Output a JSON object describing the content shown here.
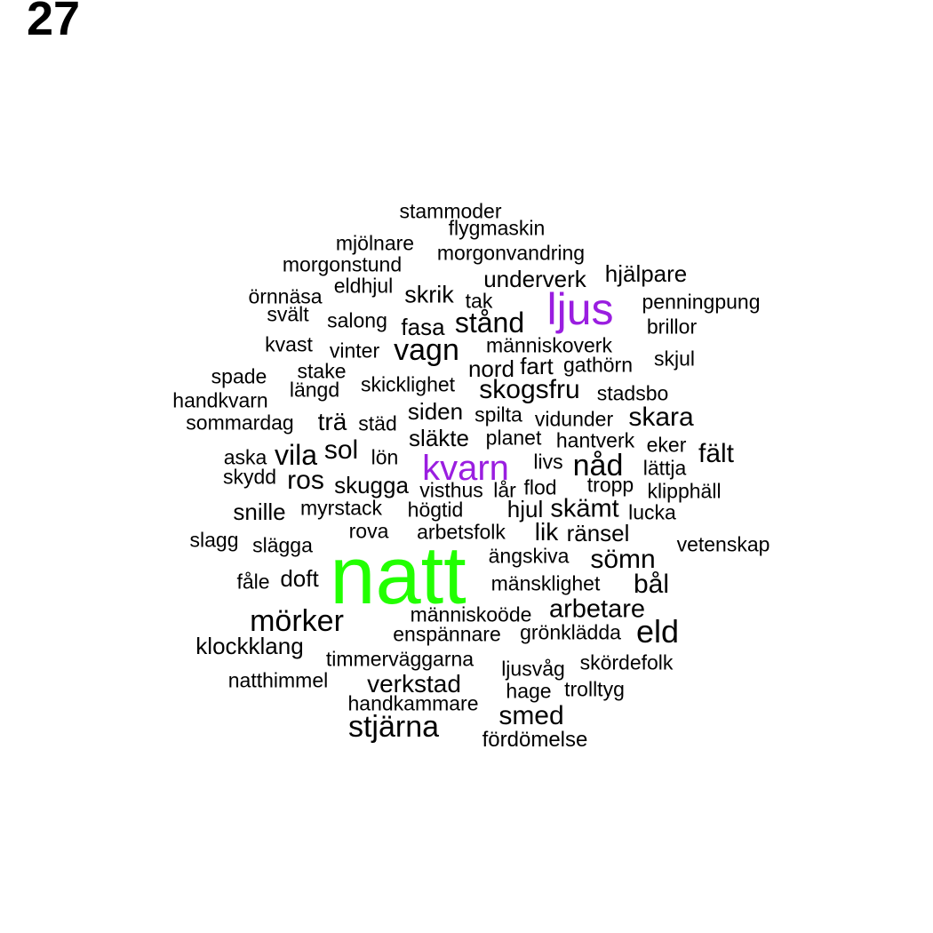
{
  "page_number": "27",
  "colors": {
    "default": "#000000",
    "purple": "#9a1ee0",
    "green": "#22ff00"
  },
  "words": [
    {
      "text": "natt",
      "color": "green"
    },
    {
      "text": "ljus",
      "color": "purple"
    },
    {
      "text": "kvarn",
      "color": "purple"
    },
    {
      "text": "stammoder"
    },
    {
      "text": "flygmaskin"
    },
    {
      "text": "mjölnare"
    },
    {
      "text": "morgonvandring"
    },
    {
      "text": "morgonstund"
    },
    {
      "text": "underverk"
    },
    {
      "text": "hjälpare"
    },
    {
      "text": "örnnäsa"
    },
    {
      "text": "eldhjul"
    },
    {
      "text": "skrik"
    },
    {
      "text": "tak"
    },
    {
      "text": "penningpung"
    },
    {
      "text": "svält"
    },
    {
      "text": "salong"
    },
    {
      "text": "fasa"
    },
    {
      "text": "stånd"
    },
    {
      "text": "brillor"
    },
    {
      "text": "kvast"
    },
    {
      "text": "vinter"
    },
    {
      "text": "vagn"
    },
    {
      "text": "människoverk"
    },
    {
      "text": "skjul"
    },
    {
      "text": "spade"
    },
    {
      "text": "stake"
    },
    {
      "text": "nord"
    },
    {
      "text": "fart"
    },
    {
      "text": "gathörn"
    },
    {
      "text": "längd"
    },
    {
      "text": "skicklighet"
    },
    {
      "text": "skogsfru"
    },
    {
      "text": "stadsbo"
    },
    {
      "text": "handkvarn"
    },
    {
      "text": "siden"
    },
    {
      "text": "spilta"
    },
    {
      "text": "vidunder"
    },
    {
      "text": "skara"
    },
    {
      "text": "sommardag"
    },
    {
      "text": "trä"
    },
    {
      "text": "städ"
    },
    {
      "text": "släkte"
    },
    {
      "text": "planet"
    },
    {
      "text": "hantverk"
    },
    {
      "text": "eker"
    },
    {
      "text": "fält"
    },
    {
      "text": "aska"
    },
    {
      "text": "vila"
    },
    {
      "text": "sol"
    },
    {
      "text": "lön"
    },
    {
      "text": "livs"
    },
    {
      "text": "nåd"
    },
    {
      "text": "lättja"
    },
    {
      "text": "skydd"
    },
    {
      "text": "ros"
    },
    {
      "text": "skugga"
    },
    {
      "text": "visthus"
    },
    {
      "text": "lår"
    },
    {
      "text": "flod"
    },
    {
      "text": "tropp"
    },
    {
      "text": "klipphäll"
    },
    {
      "text": "snille"
    },
    {
      "text": "myrstack"
    },
    {
      "text": "högtid"
    },
    {
      "text": "hjul"
    },
    {
      "text": "skämt"
    },
    {
      "text": "lucka"
    },
    {
      "text": "rova"
    },
    {
      "text": "arbetsfolk"
    },
    {
      "text": "lik"
    },
    {
      "text": "ränsel"
    },
    {
      "text": "slagg"
    },
    {
      "text": "slägga"
    },
    {
      "text": "vetenskap"
    },
    {
      "text": "ängskiva"
    },
    {
      "text": "sömn"
    },
    {
      "text": "fåle"
    },
    {
      "text": "doft"
    },
    {
      "text": "mänsklighet"
    },
    {
      "text": "bål"
    },
    {
      "text": "mörker"
    },
    {
      "text": "människoöde"
    },
    {
      "text": "arbetare"
    },
    {
      "text": "klockklang"
    },
    {
      "text": "enspännare"
    },
    {
      "text": "grönklädda"
    },
    {
      "text": "eld"
    },
    {
      "text": "timmerväggarna"
    },
    {
      "text": "ljusvåg"
    },
    {
      "text": "skördefolk"
    },
    {
      "text": "natthimmel"
    },
    {
      "text": "verkstad"
    },
    {
      "text": "hage"
    },
    {
      "text": "trolltyg"
    },
    {
      "text": "handkammare"
    },
    {
      "text": "smed"
    },
    {
      "text": "stjärna"
    },
    {
      "text": "fördömelse"
    }
  ]
}
